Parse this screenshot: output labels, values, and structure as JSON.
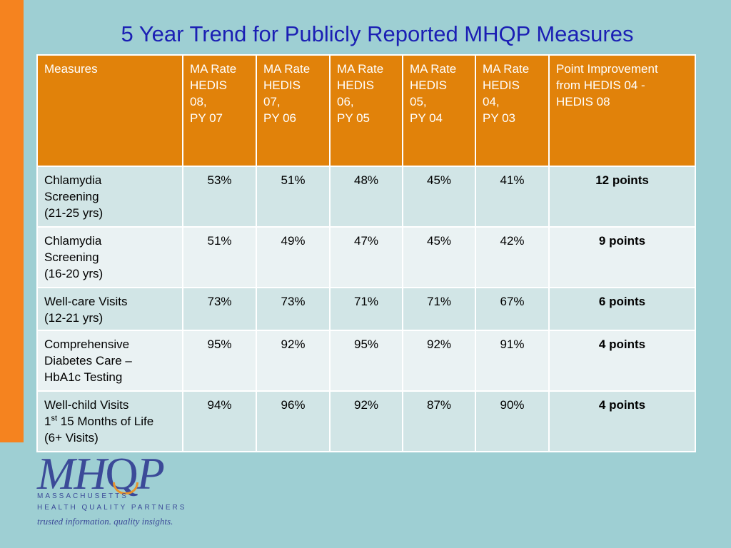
{
  "title": "5 Year Trend for Publicly Reported MHQP Measures",
  "table": {
    "headers": [
      [
        "Measures"
      ],
      [
        "MA Rate",
        "HEDIS",
        "08,",
        "PY 07"
      ],
      [
        "MA Rate",
        "HEDIS",
        "07,",
        "PY 06"
      ],
      [
        "MA Rate",
        "HEDIS",
        "06,",
        "PY 05"
      ],
      [
        "MA Rate",
        "HEDIS",
        "05,",
        "PY 04"
      ],
      [
        "MA Rate",
        "HEDIS",
        "04,",
        "PY 03"
      ],
      [
        "Point Improvement",
        "from HEDIS 04 -",
        "HEDIS 08"
      ]
    ],
    "rows": [
      {
        "measure": [
          "Chlamydia",
          "Screening",
          "(21-25 yrs)"
        ],
        "rates": [
          "53%",
          "51%",
          "48%",
          "45%",
          "41%"
        ],
        "improvement": "12 points"
      },
      {
        "measure": [
          "Chlamydia",
          "Screening",
          "(16-20 yrs)"
        ],
        "rates": [
          "51%",
          "49%",
          "47%",
          "45%",
          "42%"
        ],
        "improvement": "9 points"
      },
      {
        "measure": [
          "Well-care Visits",
          "(12-21 yrs)"
        ],
        "rates": [
          "73%",
          "73%",
          "71%",
          "71%",
          "67%"
        ],
        "improvement": "6 points"
      },
      {
        "measure": [
          "Comprehensive",
          "Diabetes Care –",
          "HbA1c Testing"
        ],
        "rates": [
          "95%",
          "92%",
          "95%",
          "92%",
          "91%"
        ],
        "improvement": "4 points"
      },
      {
        "measure_parts": {
          "line1_pre": "Well-child Visits",
          "line2_pre": "1",
          "line2_sup": "st",
          "line2_post": " 15 Months of Life",
          "line3": "(6+ Visits)"
        },
        "rates": [
          "94%",
          "96%",
          "92%",
          "87%",
          "90%"
        ],
        "improvement": "4 points"
      }
    ]
  },
  "logo": {
    "mark": "MHQP",
    "org_line1": "MASSACHUSETTS",
    "org_line2": "HEALTH QUALITY PARTNERS",
    "tagline": "trusted information. quality insights.",
    "colors": {
      "primary": "#3b4a98",
      "accent": "#e8922a"
    }
  },
  "colors": {
    "background": "#9ecfd3",
    "header": "#e1820a",
    "side_bar": "#f5831f",
    "title": "#1b1fb4"
  }
}
